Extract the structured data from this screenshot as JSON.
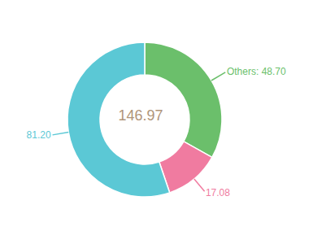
{
  "chart_data": {
    "type": "pie",
    "values": [
      48.7,
      17.08,
      81.2
    ],
    "value_labels": [
      "Others: 48.70",
      "17.08",
      "81.20"
    ],
    "data_labels": true,
    "colors": [
      "#6BBF6B",
      "#F07BA0",
      "#5BC8D5"
    ],
    "annotations": [
      "146.97"
    ]
  }
}
